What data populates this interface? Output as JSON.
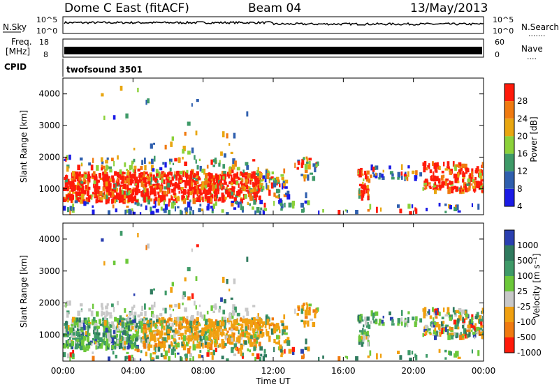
{
  "header": {
    "station": "Dome C East (fitACF)",
    "beam": "Beam 04",
    "date": "13/May/2013"
  },
  "param_panels": {
    "nsky_label": "N.Sky",
    "nsky_ticks": [
      "10^5",
      "10^0"
    ],
    "nsearch_label": "N.Search",
    "nsearch_ticks": [
      "10^5",
      "10^0"
    ],
    "nsearch_dots": "·······",
    "freq_label": "Freq.",
    "freq_unit": "[MHz]",
    "freq_ticks": [
      "18",
      "8"
    ],
    "nave_label": "Nave",
    "nave_ticks": [
      "60",
      "0"
    ],
    "nave_dots": "····",
    "cpid_label": "CPID",
    "cpid_value": "twofsound 3501"
  },
  "chart_data": [
    {
      "type": "heatmap",
      "panel": "power",
      "ylabel": "Slant Range [km]",
      "yticks": [
        "1000",
        "2000",
        "3000",
        "4000"
      ],
      "ylim": [
        180,
        4500
      ],
      "xlim_hours": [
        0,
        24
      ],
      "colorbar": {
        "label": "Power [dB]",
        "ticks": [
          "4",
          "8",
          "12",
          "16",
          "20",
          "24",
          "28"
        ],
        "colors": [
          "#1b1be6",
          "#2f5fae",
          "#3e9a68",
          "#8bd13a",
          "#e8a610",
          "#f07a10",
          "#ff1a0a"
        ]
      },
      "regions": [
        {
          "t": [
            0.0,
            11.2
          ],
          "r": [
            600,
            1500
          ],
          "level": "high"
        },
        {
          "t": [
            0.0,
            11.2
          ],
          "r": [
            1500,
            2000
          ],
          "level": "mixed"
        },
        {
          "t": [
            11.2,
            12.8
          ],
          "r": [
            700,
            1600
          ],
          "level": "mixed"
        },
        {
          "t": [
            13.2,
            14.5
          ],
          "r": [
            1300,
            2000
          ],
          "level": "mixed"
        },
        {
          "t": [
            16.8,
            17.4
          ],
          "r": [
            700,
            1600
          ],
          "level": "high"
        },
        {
          "t": [
            17.4,
            24.0
          ],
          "r": [
            900,
            1800
          ],
          "level": "mixed"
        }
      ]
    },
    {
      "type": "heatmap",
      "panel": "velocity",
      "ylabel": "Slant Range [km]",
      "yticks": [
        "1000",
        "2000",
        "3000",
        "4000"
      ],
      "ylim": [
        180,
        4500
      ],
      "xlabel": "Time UT",
      "xticks": [
        "00:00",
        "04:00",
        "08:00",
        "12:00",
        "16:00",
        "20:00",
        "00:00"
      ],
      "xlim_hours": [
        0,
        24
      ],
      "colorbar": {
        "label": "Velocity [m s⁻¹]",
        "ticks": [
          "1000",
          "500",
          "100",
          "25",
          "-25",
          "-100",
          "-500",
          "-1000"
        ],
        "colors": [
          "#2a3fb0",
          "#2f7a5e",
          "#3e9a68",
          "#6cc83a",
          "#c8c8c8",
          "#f0a010",
          "#f07a10",
          "#ff1a0a"
        ]
      }
    }
  ]
}
